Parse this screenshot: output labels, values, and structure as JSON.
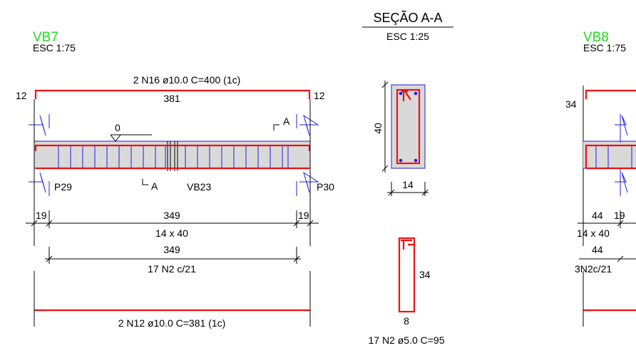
{
  "vb7": {
    "title": "VB7",
    "scale": "ESC 1:75",
    "top_bar": "2 N16 ø10.0 C=400 (1c)",
    "top_length": "381",
    "hook_left": "12",
    "hook_right": "12",
    "level": "0",
    "section_cut": "A",
    "section_cut_bottom": "A",
    "support_left": "P29",
    "support_right": "P30",
    "crossing_beam": "VB23",
    "support_width_left": "19",
    "span": "349",
    "support_width_right": "19",
    "section_size": "14 x 40",
    "stirrup_span": "349",
    "stirrups": "17 N2 c/21",
    "bottom_bar": "2 N12 ø10.0 C=381 (1c)"
  },
  "section": {
    "title": "SEÇÃO A-A",
    "scale": "ESC 1:25",
    "height": "40",
    "width": "14"
  },
  "stirrup_detail": {
    "height": "34",
    "width": "8",
    "label": "17 N2 ø5.0 C=95"
  },
  "vb8": {
    "title": "VB8",
    "scale": "ESC 1:75",
    "hook_left": "34",
    "dim_1": "44",
    "dim_2": "19",
    "section_size": "14 x 40",
    "dim_3": "44",
    "stirrups": "3N2c/21"
  }
}
